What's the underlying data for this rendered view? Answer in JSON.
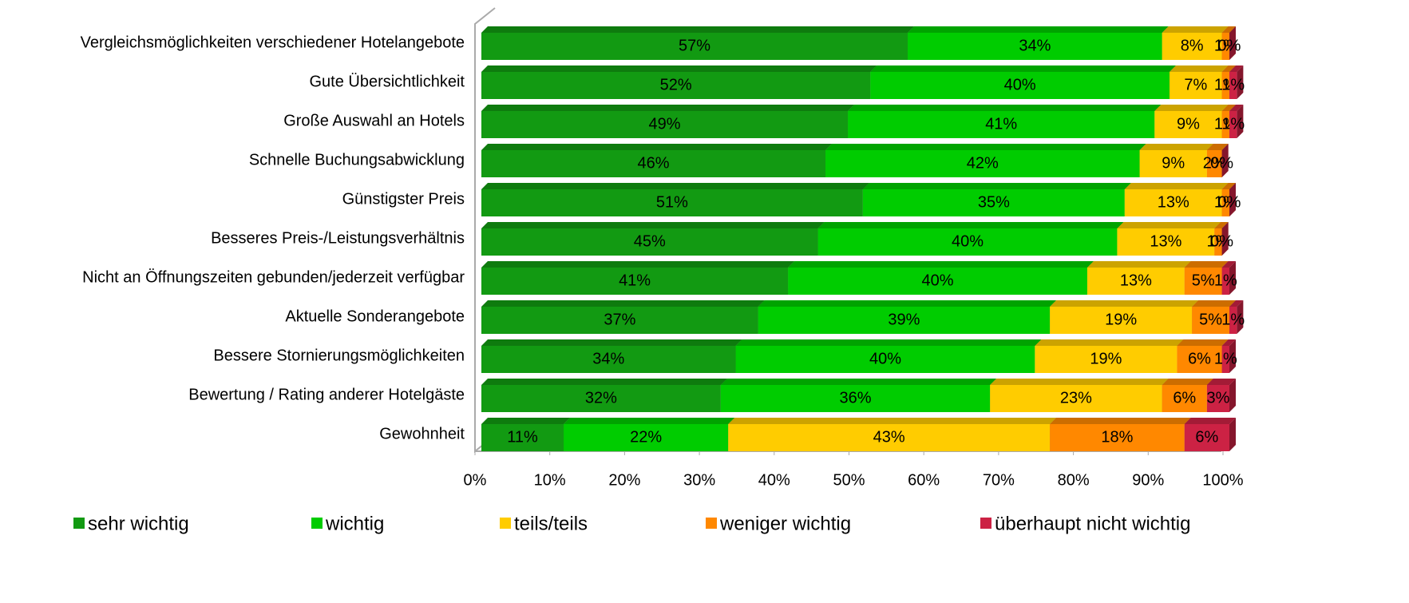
{
  "chart_data": {
    "type": "bar",
    "orientation": "horizontal",
    "stacked": true,
    "categories": [
      "Vergleichsmöglichkeiten verschiedener Hotelangebote",
      "Gute Übersichtlichkeit",
      "Große Auswahl an Hotels",
      "Schnelle Buchungsabwicklung",
      "Günstigster Preis",
      "Besseres Preis-/Leistungsverhältnis",
      "Nicht an Öffnungszeiten gebunden/jederzeit verfügbar",
      "Aktuelle Sonderangebote",
      "Bessere Stornierungsmöglichkeiten",
      "Bewertung / Rating anderer Hotelgäste",
      "Gewohnheit"
    ],
    "series": [
      {
        "name": "sehr wichtig",
        "color": "#129a12",
        "values": [
          57,
          52,
          49,
          46,
          51,
          45,
          41,
          37,
          34,
          32,
          11
        ],
        "value_labels": [
          "57%",
          "52%",
          "49%",
          "46%",
          "51%",
          "45%",
          "41%",
          "37%",
          "34%",
          "32%",
          "11%"
        ]
      },
      {
        "name": "wichtig",
        "color": "#00cc00",
        "values": [
          34,
          40,
          41,
          42,
          35,
          40,
          40,
          39,
          40,
          36,
          22
        ],
        "value_labels": [
          "34%",
          "40%",
          "41%",
          "42%",
          "35%",
          "40%",
          "40%",
          "39%",
          "40%",
          "36%",
          "22%"
        ]
      },
      {
        "name": "teils/teils",
        "color": "#ffcc00",
        "values": [
          8,
          7,
          9,
          9,
          13,
          13,
          13,
          19,
          19,
          23,
          43
        ],
        "value_labels": [
          "8%",
          "7%",
          "9%",
          "9%",
          "13%",
          "13%",
          "13%",
          "19%",
          "19%",
          "23%",
          "43%"
        ]
      },
      {
        "name": "weniger wichtig",
        "color": "#ff8800",
        "values": [
          1,
          1,
          1,
          2,
          1,
          1,
          5,
          5,
          6,
          6,
          18
        ],
        "value_labels": [
          "1%",
          "1%",
          "1%",
          "2%",
          "1%",
          "1%",
          "5%",
          "5%",
          "6%",
          "6%",
          "18%"
        ]
      },
      {
        "name": "überhaupt nicht wichtig",
        "color": "#cc2244",
        "values": [
          0,
          1,
          1,
          0,
          0,
          0,
          1,
          1,
          1,
          3,
          6
        ],
        "value_labels": [
          "0%",
          "1%",
          "1%",
          "0%",
          "0%",
          "0%",
          "1%",
          "1%",
          "1%",
          "3%",
          "6%"
        ]
      }
    ],
    "xlim": [
      0,
      100
    ],
    "xticks": [
      {
        "value": 0,
        "label": "0%"
      },
      {
        "value": 10,
        "label": "10%"
      },
      {
        "value": 20,
        "label": "20%"
      },
      {
        "value": 30,
        "label": "30%"
      },
      {
        "value": 40,
        "label": "40%"
      },
      {
        "value": 50,
        "label": "50%"
      },
      {
        "value": 60,
        "label": "60%"
      },
      {
        "value": 70,
        "label": "70%"
      },
      {
        "value": 80,
        "label": "80%"
      },
      {
        "value": 90,
        "label": "90%"
      },
      {
        "value": 100,
        "label": "100%"
      }
    ],
    "legend": "bottom"
  }
}
